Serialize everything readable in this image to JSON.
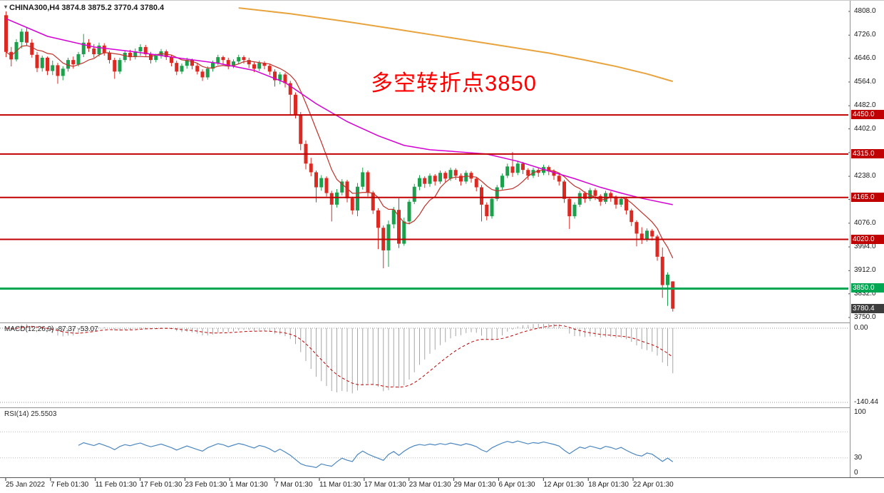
{
  "header": {
    "symbol_ohlc": "CHINA300,H4  3874.8 3875.2 3770.4 3780.4"
  },
  "annotation": {
    "text": "多空转折点3850",
    "color": "#ff0000"
  },
  "colors": {
    "up": "#1ca04c",
    "down": "#dc2a22",
    "wick_up": "#1ca04c",
    "wick_down": "#dc2a22",
    "ma_fast": "#c03028",
    "ma_mid": "#d400d4",
    "ma_slow": "#e8a33d",
    "resistance": "#c00000",
    "pivot": "#00a651",
    "histogram": "#a6a6a6",
    "signal": "#c00000",
    "rsi": "#4a86c0",
    "current_tag_bg": "#3d3d3d"
  },
  "chart_data": {
    "type": "candlestick",
    "symbol": "CHINA300",
    "timeframe": "H4",
    "ohlc_current": {
      "open": 3874.8,
      "high": 3875.2,
      "low": 3770.4,
      "close": 3780.4
    },
    "ylim": [
      3740,
      4845
    ],
    "y_ticks": [
      "4808.0",
      "4726.0",
      "4646.0",
      "4564.0",
      "4482.0",
      "4402.0",
      "4320.0",
      "4238.0",
      "4158.0",
      "4076.0",
      "3994.0",
      "3912.0",
      "3832.0",
      "3750.0"
    ],
    "x_ticks": [
      "25 Jan 2022",
      "7 Feb 01:30",
      "11 Feb 01:30",
      "17 Feb 01:30",
      "23 Feb 01:30",
      "1 Mar 01:30",
      "7 Mar 01:30",
      "11 Mar 01:30",
      "17 Mar 01:30",
      "23 Mar 01:30",
      "29 Mar 01:30",
      "6 Apr 01:30",
      "12 Apr 01:30",
      "18 Apr 01:30",
      "22 Apr 01:30"
    ],
    "hlines": [
      {
        "price": 4450.0,
        "label": "4450.0",
        "type": "resistance"
      },
      {
        "price": 4315.0,
        "label": "4315.0",
        "type": "resistance"
      },
      {
        "price": 4165.0,
        "label": "4165.0",
        "type": "resistance"
      },
      {
        "price": 4020.0,
        "label": "4020.0",
        "type": "resistance"
      },
      {
        "price": 3850.0,
        "label": "3850.0",
        "type": "pivot"
      }
    ],
    "current_price": {
      "value": 3780.4,
      "label": "3780.4"
    },
    "ohlc": [
      [
        4795,
        4808,
        4650,
        4668
      ],
      [
        4668,
        4685,
        4618,
        4642
      ],
      [
        4642,
        4712,
        4635,
        4702
      ],
      [
        4702,
        4748,
        4680,
        4738
      ],
      [
        4738,
        4752,
        4688,
        4700
      ],
      [
        4700,
        4712,
        4648,
        4658
      ],
      [
        4658,
        4668,
        4598,
        4612
      ],
      [
        4612,
        4655,
        4600,
        4648
      ],
      [
        4648,
        4652,
        4588,
        4602
      ],
      [
        4602,
        4638,
        4588,
        4622
      ],
      [
        4622,
        4630,
        4558,
        4585
      ],
      [
        4585,
        4618,
        4570,
        4610
      ],
      [
        4610,
        4648,
        4600,
        4640
      ],
      [
        4640,
        4652,
        4610,
        4625
      ],
      [
        4625,
        4668,
        4618,
        4660
      ],
      [
        4660,
        4730,
        4650,
        4700
      ],
      [
        4700,
        4712,
        4668,
        4680
      ],
      [
        4680,
        4695,
        4648,
        4660
      ],
      [
        4660,
        4700,
        4652,
        4690
      ],
      [
        4690,
        4698,
        4655,
        4665
      ],
      [
        4665,
        4672,
        4628,
        4640
      ],
      [
        4640,
        4648,
        4575,
        4600
      ],
      [
        4600,
        4648,
        4592,
        4640
      ],
      [
        4640,
        4672,
        4632,
        4665
      ],
      [
        4665,
        4675,
        4638,
        4650
      ],
      [
        4650,
        4680,
        4642,
        4670
      ],
      [
        4670,
        4695,
        4655,
        4685
      ],
      [
        4685,
        4692,
        4650,
        4660
      ],
      [
        4660,
        4668,
        4628,
        4640
      ],
      [
        4640,
        4662,
        4632,
        4655
      ],
      [
        4655,
        4678,
        4645,
        4670
      ],
      [
        4670,
        4676,
        4640,
        4650
      ],
      [
        4650,
        4658,
        4618,
        4630
      ],
      [
        4630,
        4638,
        4588,
        4600
      ],
      [
        4600,
        4628,
        4592,
        4620
      ],
      [
        4620,
        4648,
        4610,
        4640
      ],
      [
        4640,
        4645,
        4608,
        4620
      ],
      [
        4620,
        4628,
        4590,
        4600
      ],
      [
        4600,
        4608,
        4568,
        4580
      ],
      [
        4580,
        4618,
        4572,
        4610
      ],
      [
        4610,
        4638,
        4600,
        4630
      ],
      [
        4630,
        4658,
        4622,
        4650
      ],
      [
        4650,
        4655,
        4625,
        4640
      ],
      [
        4640,
        4648,
        4608,
        4620
      ],
      [
        4620,
        4642,
        4612,
        4635
      ],
      [
        4635,
        4658,
        4625,
        4650
      ],
      [
        4650,
        4656,
        4628,
        4640
      ],
      [
        4640,
        4648,
        4612,
        4625
      ],
      [
        4625,
        4632,
        4598,
        4610
      ],
      [
        4610,
        4638,
        4602,
        4630
      ],
      [
        4630,
        4636,
        4608,
        4620
      ],
      [
        4620,
        4626,
        4588,
        4600
      ],
      [
        4600,
        4608,
        4548,
        4570
      ],
      [
        4570,
        4598,
        4556,
        4590
      ],
      [
        4590,
        4596,
        4545,
        4560
      ],
      [
        4560,
        4568,
        4452,
        4520
      ],
      [
        4520,
        4528,
        4438,
        4452
      ],
      [
        4452,
        4460,
        4328,
        4350
      ],
      [
        4350,
        4362,
        4262,
        4282
      ],
      [
        4282,
        4302,
        4238,
        4252
      ],
      [
        4252,
        4258,
        4148,
        4200
      ],
      [
        4200,
        4242,
        4188,
        4232
      ],
      [
        4232,
        4238,
        4168,
        4180
      ],
      [
        4180,
        4188,
        4082,
        4140
      ],
      [
        4140,
        4194,
        4130,
        4182
      ],
      [
        4182,
        4228,
        4172,
        4220
      ],
      [
        4220,
        4226,
        4148,
        4162
      ],
      [
        4162,
        4168,
        4106,
        4120
      ],
      [
        4120,
        4215,
        4100,
        4202
      ],
      [
        4202,
        4268,
        4192,
        4252
      ],
      [
        4252,
        4258,
        4168,
        4182
      ],
      [
        4182,
        4188,
        4108,
        4120
      ],
      [
        4120,
        4128,
        3986,
        4060
      ],
      [
        4060,
        4068,
        3920,
        3982
      ],
      [
        3982,
        4085,
        3925,
        4072
      ],
      [
        4072,
        4132,
        4058,
        4122
      ],
      [
        4122,
        4162,
        3990,
        4005
      ],
      [
        4005,
        4095,
        3998,
        4082
      ],
      [
        4082,
        4158,
        4072,
        4150
      ],
      [
        4150,
        4212,
        4142,
        4202
      ],
      [
        4202,
        4242,
        4190,
        4232
      ],
      [
        4232,
        4238,
        4198,
        4212
      ],
      [
        4212,
        4248,
        4202,
        4240
      ],
      [
        4240,
        4246,
        4206,
        4220
      ],
      [
        4220,
        4258,
        4212,
        4250
      ],
      [
        4250,
        4256,
        4216,
        4230
      ],
      [
        4230,
        4268,
        4222,
        4260
      ],
      [
        4260,
        4266,
        4226,
        4240
      ],
      [
        4240,
        4248,
        4206,
        4220
      ],
      [
        4220,
        4258,
        4212,
        4250
      ],
      [
        4250,
        4256,
        4216,
        4230
      ],
      [
        4230,
        4236,
        4186,
        4200
      ],
      [
        4200,
        4208,
        4082,
        4140
      ],
      [
        4140,
        4148,
        4086,
        4100
      ],
      [
        4100,
        4168,
        4092,
        4160
      ],
      [
        4160,
        4208,
        4152,
        4200
      ],
      [
        4200,
        4248,
        4192,
        4240
      ],
      [
        4240,
        4282,
        4232,
        4272
      ],
      [
        4272,
        4322,
        4236,
        4250
      ],
      [
        4250,
        4292,
        4242,
        4282
      ],
      [
        4282,
        4288,
        4246,
        4260
      ],
      [
        4260,
        4266,
        4226,
        4240
      ],
      [
        4240,
        4268,
        4232,
        4260
      ],
      [
        4260,
        4266,
        4236,
        4250
      ],
      [
        4250,
        4278,
        4242,
        4270
      ],
      [
        4270,
        4276,
        4242,
        4255
      ],
      [
        4255,
        4262,
        4226,
        4240
      ],
      [
        4240,
        4246,
        4206,
        4220
      ],
      [
        4220,
        4226,
        4146,
        4160
      ],
      [
        4160,
        4166,
        4056,
        4100
      ],
      [
        4100,
        4148,
        4092,
        4140
      ],
      [
        4140,
        4188,
        4132,
        4180
      ],
      [
        4180,
        4186,
        4146,
        4160
      ],
      [
        4160,
        4198,
        4152,
        4190
      ],
      [
        4190,
        4196,
        4156,
        4170
      ],
      [
        4170,
        4176,
        4136,
        4150
      ],
      [
        4150,
        4188,
        4142,
        4180
      ],
      [
        4180,
        4186,
        4150,
        4165
      ],
      [
        4165,
        4172,
        4126,
        4140
      ],
      [
        4140,
        4168,
        4132,
        4160
      ],
      [
        4160,
        4166,
        4106,
        4120
      ],
      [
        4120,
        4126,
        4066,
        4080
      ],
      [
        4080,
        4086,
        3996,
        4040
      ],
      [
        4040,
        4062,
        4004,
        4020
      ],
      [
        4020,
        4058,
        4012,
        4050
      ],
      [
        4050,
        4056,
        4016,
        4030
      ],
      [
        4030,
        4036,
        3946,
        3960
      ],
      [
        3960,
        3992,
        3818,
        3862
      ],
      [
        3862,
        3906,
        3790,
        3898
      ],
      [
        3874.8,
        3875.2,
        3770.4,
        3780.4
      ]
    ],
    "overlays": {
      "ma_fast_period": 8,
      "ma_mid_points": [
        [
          0,
          4783
        ],
        [
          8,
          4722
        ],
        [
          17,
          4685
        ],
        [
          25,
          4668
        ],
        [
          33,
          4648
        ],
        [
          41,
          4629
        ],
        [
          48,
          4604
        ],
        [
          54,
          4562
        ],
        [
          60,
          4489
        ],
        [
          66,
          4427
        ],
        [
          72,
          4378
        ],
        [
          77,
          4345
        ],
        [
          82,
          4330
        ],
        [
          88,
          4322
        ],
        [
          93,
          4315
        ],
        [
          99,
          4290
        ],
        [
          104,
          4262
        ],
        [
          110,
          4230
        ],
        [
          115,
          4200
        ],
        [
          119,
          4180
        ],
        [
          123,
          4162
        ],
        [
          129,
          4140
        ]
      ],
      "ma_slow_points": [
        [
          45,
          4820
        ],
        [
          55,
          4800
        ],
        [
          65,
          4775
        ],
        [
          75,
          4748
        ],
        [
          85,
          4720
        ],
        [
          95,
          4692
        ],
        [
          105,
          4664
        ],
        [
          112,
          4640
        ],
        [
          118,
          4618
        ],
        [
          124,
          4592
        ],
        [
          129,
          4566
        ]
      ]
    },
    "indicators": {
      "macd": {
        "title": "MACD(12,26,9) -87.37 -53.07",
        "fast": 12,
        "slow": 26,
        "signal": 9,
        "value_macd": -87.37,
        "value_signal": -53.07,
        "axis": [
          {
            "label": "0.00",
            "value": 0
          },
          {
            "label": "-140.44",
            "value": -140.44
          }
        ]
      },
      "rsi": {
        "title": "RSI(14) 25.5503",
        "period": 14,
        "value": 25.5503,
        "levels": [
          70,
          30
        ],
        "axis": [
          {
            "label": "100",
            "value": 100
          },
          {
            "label": "30",
            "value": 30
          },
          {
            "label": "0",
            "value": 0
          }
        ]
      }
    }
  }
}
